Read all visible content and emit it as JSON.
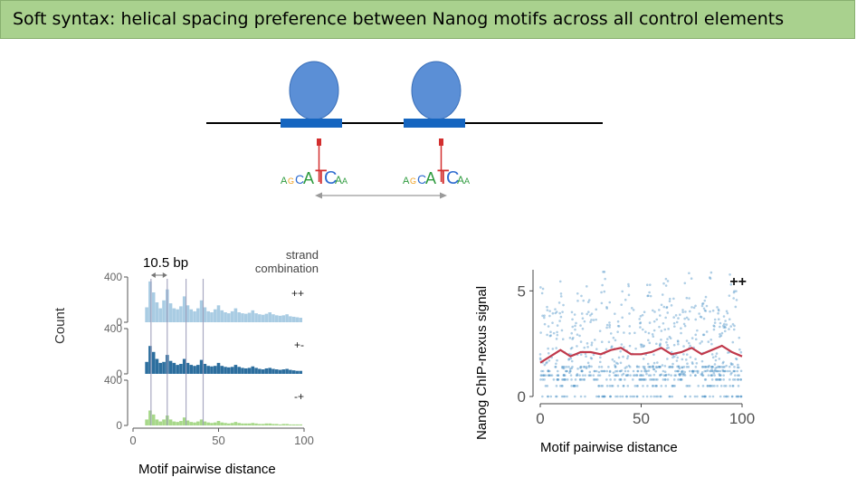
{
  "slide": {
    "title": "Soft syntax: helical spacing preference between Nanog motifs across all control elements"
  },
  "schematic": {
    "motif_count": 2,
    "protein_color": "#5b8fd6",
    "binding_site_color": "#1565c0"
  },
  "colors": {
    "title_bg": "#a9d18e",
    "hist_pp": "#a9cce3",
    "hist_pm": "#2c6e9e",
    "hist_mp": "#a7d889",
    "scatter_points": "#4f95c8",
    "trend_line": "#c0394b"
  },
  "chart_data": [
    {
      "type": "bar",
      "panel": "histogram",
      "spacing_annotation": "10.5 bp",
      "legend_title": "strand combination",
      "ylabel": "Count",
      "xlabel": "Motif pairwise distance",
      "xlim": [
        0,
        100
      ],
      "ylim": [
        0,
        400
      ],
      "xticks": [
        0,
        50,
        100
      ],
      "yticks": [
        0,
        400
      ],
      "peak_positions": [
        10.5,
        20,
        31,
        41
      ],
      "series": [
        {
          "name": "++",
          "x": [
            8,
            10,
            12,
            14,
            16,
            18,
            20,
            22,
            24,
            26,
            28,
            30,
            32,
            34,
            36,
            38,
            40,
            42,
            44,
            46,
            48,
            50,
            52,
            54,
            56,
            58,
            60,
            62,
            64,
            66,
            68,
            70,
            72,
            74,
            76,
            78,
            80,
            82,
            84,
            86,
            88,
            90,
            92,
            94,
            96,
            98
          ],
          "values": [
            150,
            410,
            300,
            200,
            140,
            220,
            330,
            190,
            140,
            130,
            160,
            260,
            170,
            130,
            110,
            140,
            220,
            150,
            110,
            100,
            130,
            170,
            120,
            100,
            90,
            110,
            140,
            100,
            90,
            85,
            95,
            120,
            90,
            80,
            75,
            85,
            100,
            80,
            70,
            65,
            70,
            80,
            60,
            55,
            50,
            45
          ]
        },
        {
          "name": "+-",
          "x": [
            8,
            10,
            12,
            14,
            16,
            18,
            20,
            22,
            24,
            26,
            28,
            30,
            32,
            34,
            36,
            38,
            40,
            42,
            44,
            46,
            48,
            50,
            52,
            54,
            56,
            58,
            60,
            62,
            64,
            66,
            68,
            70,
            72,
            74,
            76,
            78,
            80,
            82,
            84,
            86,
            88,
            90,
            92,
            94,
            96,
            98
          ],
          "values": [
            120,
            280,
            220,
            150,
            110,
            120,
            190,
            130,
            110,
            90,
            100,
            150,
            110,
            90,
            80,
            90,
            140,
            100,
            80,
            75,
            80,
            110,
            80,
            70,
            65,
            70,
            90,
            70,
            60,
            55,
            60,
            75,
            60,
            50,
            45,
            55,
            60,
            50,
            45,
            40,
            45,
            50,
            40,
            35,
            30,
            30
          ]
        },
        {
          "name": "-+",
          "x": [
            8,
            10,
            12,
            14,
            16,
            18,
            20,
            22,
            24,
            26,
            28,
            30,
            32,
            34,
            36,
            38,
            40,
            42,
            44,
            46,
            48,
            50,
            52,
            54,
            56,
            58,
            60,
            62,
            64,
            66,
            68,
            70,
            72,
            74,
            76,
            78,
            80,
            82,
            84,
            86,
            88,
            90,
            92,
            94,
            96,
            98
          ],
          "values": [
            60,
            150,
            110,
            60,
            40,
            60,
            100,
            60,
            40,
            35,
            45,
            80,
            50,
            35,
            30,
            40,
            60,
            40,
            30,
            25,
            30,
            45,
            30,
            25,
            20,
            25,
            35,
            25,
            20,
            20,
            20,
            25,
            20,
            15,
            15,
            20,
            20,
            15,
            15,
            10,
            15,
            15,
            10,
            10,
            10,
            10
          ]
        }
      ]
    },
    {
      "type": "scatter",
      "panel": "chipnexus",
      "ylabel": "Nanog ChIP-nexus signal",
      "xlabel": "Motif pairwise distance",
      "legend": "++",
      "xlim": [
        0,
        100
      ],
      "ylim": [
        0,
        6
      ],
      "xticks": [
        0,
        50,
        100
      ],
      "yticks": [
        0,
        5
      ],
      "trend": {
        "x": [
          0,
          5,
          10,
          15,
          20,
          25,
          30,
          35,
          40,
          45,
          50,
          55,
          60,
          65,
          70,
          75,
          80,
          85,
          90,
          95,
          100
        ],
        "y": [
          1.6,
          1.9,
          2.2,
          1.9,
          2.1,
          2.1,
          2.0,
          2.2,
          2.3,
          2.0,
          2.0,
          2.1,
          2.3,
          2.0,
          2.1,
          2.3,
          2.0,
          2.2,
          2.4,
          2.1,
          1.9
        ]
      }
    }
  ]
}
